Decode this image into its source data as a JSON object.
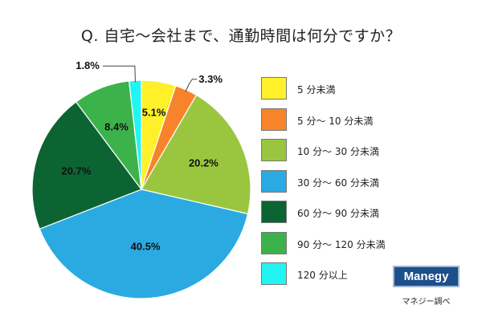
{
  "title": "Q. 自宅〜会社まで、通勤時間は何分ですか？",
  "chart_data": {
    "type": "pie",
    "title": "Q. 自宅〜会社まで、通勤時間は何分ですか？",
    "start_angle_deg": 0,
    "direction": "clockwise",
    "slices": [
      {
        "label": "5 分未満",
        "value": 5.1,
        "display": "5.1%",
        "color": "#fff02a",
        "label_pos": "inside"
      },
      {
        "label": "5 分〜 10 分未満",
        "value": 3.3,
        "display": "3.3%",
        "color": "#f7842a",
        "label_pos": "outside"
      },
      {
        "label": "10 分〜 30 分未満",
        "value": 20.2,
        "display": "20.2%",
        "color": "#9ac63f",
        "label_pos": "inside"
      },
      {
        "label": "30 分〜 60 分未満",
        "value": 40.5,
        "display": "40.5%",
        "color": "#2aaae1",
        "label_pos": "inside"
      },
      {
        "label": "60 分〜 90 分未満",
        "value": 20.7,
        "display": "20.7%",
        "color": "#0c6432",
        "label_pos": "inside"
      },
      {
        "label": "90 分〜 120 分未満",
        "value": 8.4,
        "display": "8.4%",
        "color": "#3cb34a",
        "label_pos": "inside"
      },
      {
        "label": "120 分以上",
        "value": 1.8,
        "display": "1.8%",
        "color": "#22f4f4",
        "label_pos": "outside"
      }
    ],
    "legend_position": "right"
  },
  "brand": "Manegy",
  "source": "マネジー調べ"
}
